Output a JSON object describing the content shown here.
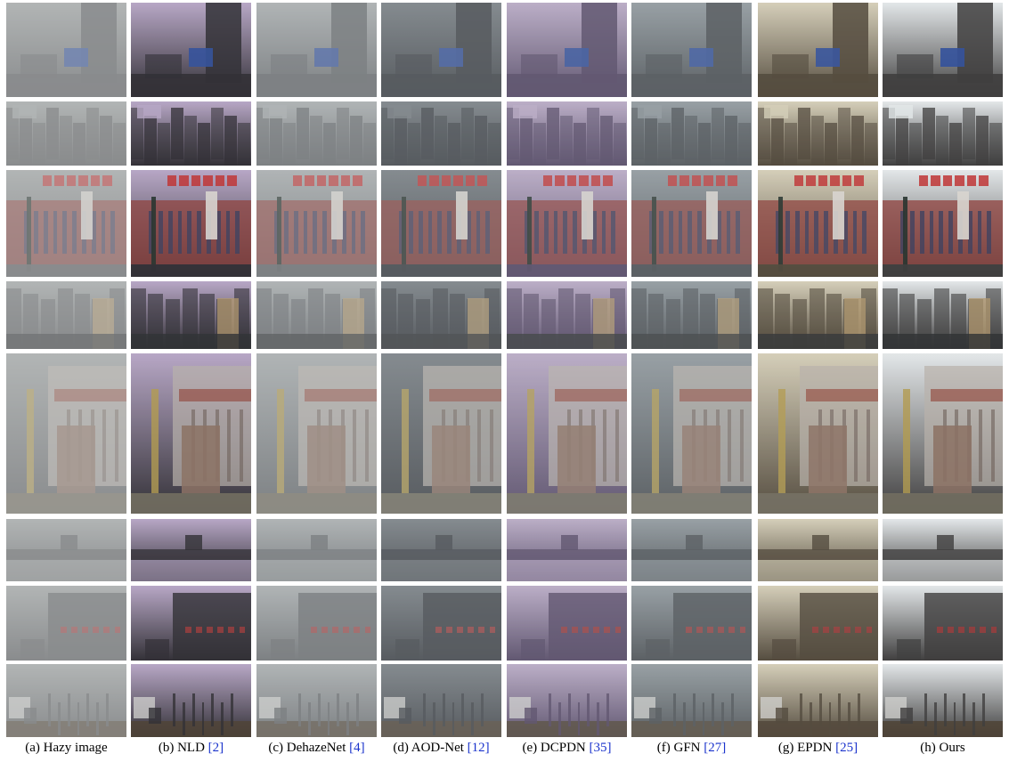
{
  "columns": [
    {
      "label": "(a) Hazy image",
      "ref": ""
    },
    {
      "label": "(b) NLD ",
      "ref": "[2]"
    },
    {
      "label": "(c) DehazeNet ",
      "ref": "[4]"
    },
    {
      "label": "(d) AOD-Net ",
      "ref": "[12]"
    },
    {
      "label": "(e) DCPDN ",
      "ref": "[35]"
    },
    {
      "label": "(f) GFN ",
      "ref": "[27]"
    },
    {
      "label": "(g) EPDN ",
      "ref": "[25]"
    },
    {
      "label": "(h) Ours",
      "ref": ""
    }
  ],
  "rows": [
    {
      "scene": "city-street"
    },
    {
      "scene": "aerial-city"
    },
    {
      "scene": "red-building-statue"
    },
    {
      "scene": "skyline-buildings"
    },
    {
      "scene": "monument-sculpture"
    },
    {
      "scene": "corner-tower-moat"
    },
    {
      "scene": "traditional-building"
    },
    {
      "scene": "factory-smokestacks"
    }
  ],
  "tints": [
    {
      "sky": "#9ea2a2",
      "ground": "#55575a",
      "haze": 0.45
    },
    {
      "sky": "#b7a6c6",
      "ground": "#2c2a30",
      "haze": 0.05
    },
    {
      "sky": "#a3a8aa",
      "ground": "#55595d",
      "haze": 0.35
    },
    {
      "sky": "#6f767c",
      "ground": "#32363c",
      "haze": 0.25
    },
    {
      "sky": "#b9a8c6",
      "ground": "#4c3f5e",
      "haze": 0.18
    },
    {
      "sky": "#8b949a",
      "ground": "#3e4348",
      "haze": 0.22
    },
    {
      "sky": "#d6cfb8",
      "ground": "#4b4234",
      "haze": 0.08
    },
    {
      "sky": "#e4e8ea",
      "ground": "#3b3a3a",
      "haze": 0.04
    }
  ]
}
